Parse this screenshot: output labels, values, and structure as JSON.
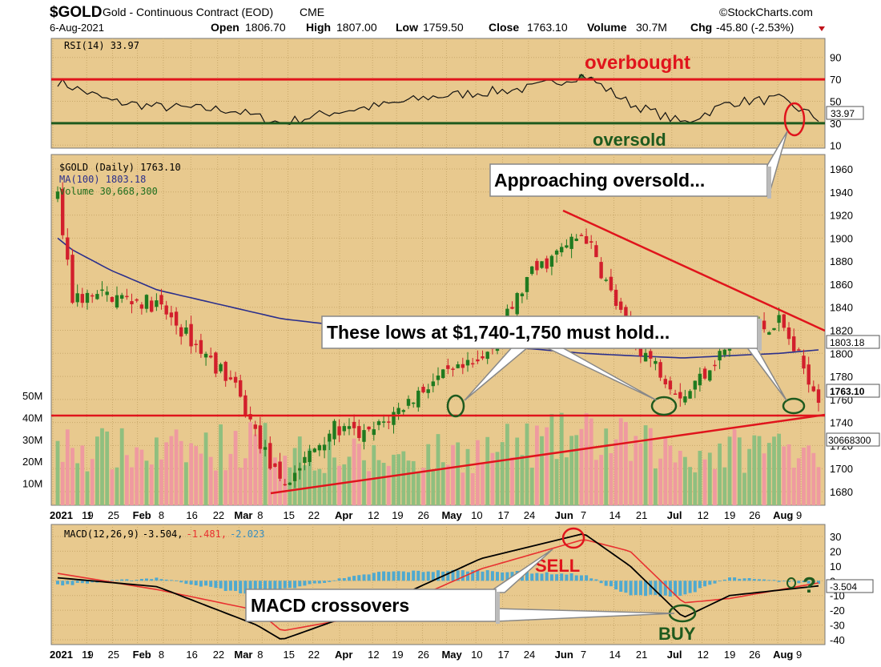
{
  "header": {
    "symbol": "$GOLD",
    "description": "Gold - Continuous Contract (EOD)",
    "exchange": "CME",
    "date": "6-Aug-2021",
    "open_label": "Open",
    "open": "1806.70",
    "high_label": "High",
    "high": "1807.00",
    "low_label": "Low",
    "low": "1759.50",
    "close_label": "Close",
    "close": "1763.10",
    "volume_label": "Volume",
    "volume": "30.7M",
    "chg_label": "Chg",
    "chg": "-45.80 (-2.53%)",
    "watermark": "©StockCharts.com"
  },
  "rsi_panel": {
    "legend": "RSI(14) 33.97",
    "current_tag": "33.97",
    "ticks": [
      "90",
      "70",
      "50",
      "30",
      "10"
    ],
    "overbought_label": "overbought",
    "oversold_label": "oversold"
  },
  "price_panel": {
    "legend_price": "$GOLD (Daily) 1763.10",
    "legend_ma": "MA(100) 1803.18",
    "legend_volume": "Volume 30,668,300",
    "price_ticks": [
      "1960",
      "1940",
      "1920",
      "1900",
      "1880",
      "1860",
      "1840",
      "1820",
      "1800",
      "1780",
      "1760",
      "1740",
      "1720",
      "1700",
      "1680"
    ],
    "volume_ticks": [
      "50M",
      "40M",
      "30M",
      "20M",
      "10M"
    ],
    "ma_tag": "1803.18",
    "close_tag": "1763.10",
    "volume_tag": "30668300"
  },
  "macd_panel": {
    "legend_name": "MACD(12,26,9)",
    "legend_macd": "-3.504,",
    "legend_signal": "-1.481,",
    "legend_hist": "-2.023",
    "current_tag": "-3.504",
    "ticks": [
      "30",
      "20",
      "10",
      "0",
      "-10",
      "-20",
      "-30",
      "-40"
    ],
    "sell_label": "SELL",
    "buy_label": "BUY",
    "question_mark": "?"
  },
  "x_axis": {
    "year_label": "2021",
    "labels": [
      {
        "t": "11",
        "bold": false
      },
      {
        "t": "19",
        "bold": false
      },
      {
        "t": "25",
        "bold": false
      },
      {
        "t": "Feb",
        "bold": true
      },
      {
        "t": "8",
        "bold": false
      },
      {
        "t": "16",
        "bold": false
      },
      {
        "t": "22",
        "bold": false
      },
      {
        "t": "Mar",
        "bold": true
      },
      {
        "t": "8",
        "bold": false
      },
      {
        "t": "15",
        "bold": false
      },
      {
        "t": "22",
        "bold": false
      },
      {
        "t": "Apr",
        "bold": true
      },
      {
        "t": "12",
        "bold": false
      },
      {
        "t": "19",
        "bold": false
      },
      {
        "t": "26",
        "bold": false
      },
      {
        "t": "May",
        "bold": true
      },
      {
        "t": "10",
        "bold": false
      },
      {
        "t": "17",
        "bold": false
      },
      {
        "t": "24",
        "bold": false
      },
      {
        "t": "Jun",
        "bold": true
      },
      {
        "t": "7",
        "bold": false
      },
      {
        "t": "14",
        "bold": false
      },
      {
        "t": "21",
        "bold": false
      },
      {
        "t": "Jul",
        "bold": true
      },
      {
        "t": "12",
        "bold": false
      },
      {
        "t": "19",
        "bold": false
      },
      {
        "t": "26",
        "bold": false
      },
      {
        "t": "Aug",
        "bold": true
      },
      {
        "t": "9",
        "bold": false
      }
    ]
  },
  "annotations": {
    "approaching": "Approaching oversold...",
    "lows": "These lows at $1,740-1,750 must hold...",
    "macd_cross": "MACD crossovers"
  },
  "colors": {
    "panel_bg": "#e8c98e",
    "up": "#1f7a1f",
    "down": "#d21f2c",
    "ma": "#2b2f8c",
    "volume_up": "#8fbf7f",
    "volume_down": "#ef9aa0",
    "annotation_red": "#e0141c",
    "annotation_green": "#1e5a1e",
    "macd_line": "#000000",
    "signal_line": "#e83030",
    "histogram": "#4fa9cf"
  },
  "chart_data": [
    {
      "type": "line",
      "title": "RSI(14)",
      "ylim": [
        0,
        100
      ],
      "reference_lines": {
        "overbought": 70,
        "oversold": 30
      },
      "x": [
        "2021-01-04",
        "2021-01-19",
        "2021-02-01",
        "2021-02-22",
        "2021-03-08",
        "2021-03-22",
        "2021-04-05",
        "2021-04-19",
        "2021-05-03",
        "2021-05-17",
        "2021-06-01",
        "2021-06-14",
        "2021-06-29",
        "2021-07-12",
        "2021-07-26",
        "2021-08-06"
      ],
      "series": [
        {
          "name": "RSI(14)",
          "values": [
            68,
            50,
            45,
            42,
            30,
            40,
            46,
            54,
            58,
            62,
            74,
            48,
            30,
            49,
            52,
            34
          ]
        }
      ]
    },
    {
      "type": "candlestick",
      "title": "$GOLD (Daily)",
      "ylim": [
        1670,
        1970
      ],
      "x": [
        "2021-01-04",
        "2021-01-08",
        "2021-01-19",
        "2021-02-01",
        "2021-02-22",
        "2021-03-08",
        "2021-03-22",
        "2021-04-01",
        "2021-04-19",
        "2021-05-03",
        "2021-05-17",
        "2021-06-01",
        "2021-06-14",
        "2021-06-29",
        "2021-07-12",
        "2021-07-26",
        "2021-08-06"
      ],
      "close": [
        1935,
        1848,
        1850,
        1842,
        1775,
        1683,
        1735,
        1728,
        1775,
        1792,
        1868,
        1905,
        1815,
        1762,
        1810,
        1828,
        1763
      ],
      "series": [
        {
          "name": "MA(100)",
          "values": [
            1900,
            1890,
            1872,
            1855,
            1840,
            1830,
            1825,
            1818,
            1808,
            1806,
            1804,
            1800,
            1798,
            1796,
            1798,
            1800,
            1803
          ]
        }
      ],
      "support_band": [
        1740,
        1750
      ]
    },
    {
      "type": "bar",
      "title": "Volume",
      "ylim": [
        0,
        50000000
      ],
      "x": [
        "2021-01-04",
        "2021-02-01",
        "2021-03-01",
        "2021-04-01",
        "2021-05-03",
        "2021-06-01",
        "2021-07-01",
        "2021-08-06"
      ],
      "values": [
        28000000,
        25000000,
        30000000,
        22000000,
        26000000,
        33000000,
        24000000,
        30668300
      ]
    },
    {
      "type": "line",
      "title": "MACD(12,26,9)",
      "ylim": [
        -45,
        38
      ],
      "x": [
        "2021-01-04",
        "2021-02-01",
        "2021-03-01",
        "2021-03-08",
        "2021-04-05",
        "2021-05-03",
        "2021-06-01",
        "2021-06-14",
        "2021-06-29",
        "2021-07-12",
        "2021-08-06"
      ],
      "series": [
        {
          "name": "MACD",
          "values": [
            2,
            -4,
            -30,
            -40,
            -16,
            15,
            32,
            10,
            -25,
            -10,
            -3.504
          ]
        },
        {
          "name": "Signal",
          "values": [
            5,
            -6,
            -20,
            -34,
            -22,
            8,
            28,
            20,
            -15,
            -12,
            -1.481
          ]
        },
        {
          "name": "Histogram",
          "values": [
            -3,
            2,
            -10,
            -6,
            6,
            7,
            4,
            -10,
            -10,
            2,
            -2.023
          ]
        }
      ]
    }
  ]
}
